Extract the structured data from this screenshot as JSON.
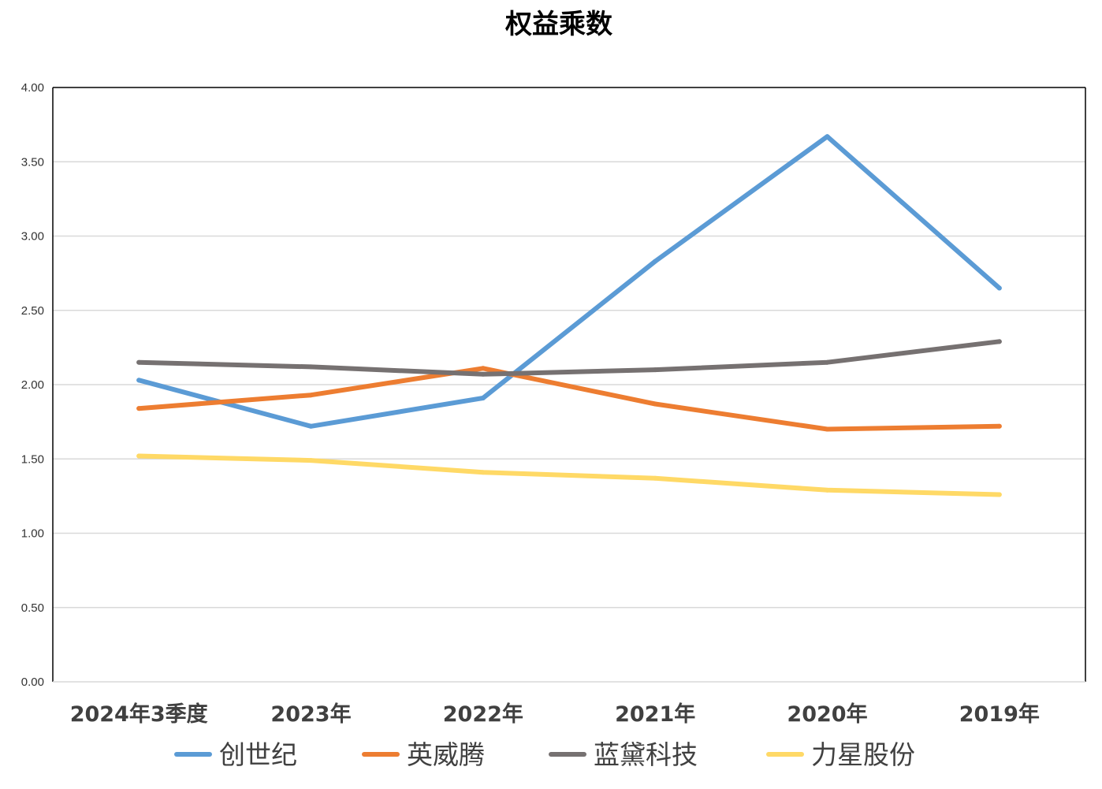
{
  "chart_data": {
    "type": "line",
    "title": "权益乘数",
    "categories": [
      "2024年3季度",
      "2023年",
      "2022年",
      "2021年",
      "2020年",
      "2019年"
    ],
    "ylim": [
      0,
      4
    ],
    "yticks": [
      "0.00",
      "0.50",
      "1.00",
      "1.50",
      "2.00",
      "2.50",
      "3.00",
      "3.50",
      "4.00"
    ],
    "grid": true,
    "legend_position": "bottom",
    "series": [
      {
        "name": "创世纪",
        "color": "#5b9bd5",
        "values": [
          2.03,
          1.72,
          1.91,
          2.83,
          3.67,
          2.65
        ]
      },
      {
        "name": "英威腾",
        "color": "#ed7d31",
        "values": [
          1.84,
          1.93,
          2.11,
          1.87,
          1.7,
          1.72
        ]
      },
      {
        "name": "蓝黛科技",
        "color": "#767171",
        "values": [
          2.15,
          2.12,
          2.07,
          2.1,
          2.15,
          2.29
        ]
      },
      {
        "name": "力星股份",
        "color": "#ffd966",
        "values": [
          1.52,
          1.49,
          1.41,
          1.37,
          1.29,
          1.26
        ]
      }
    ]
  }
}
